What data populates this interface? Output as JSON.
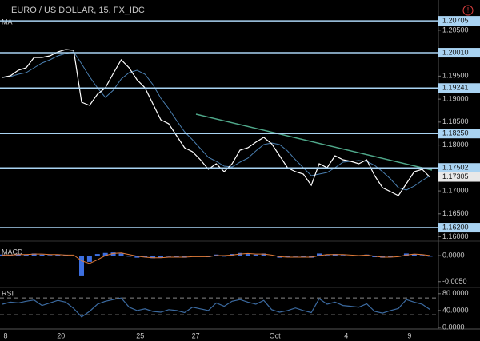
{
  "chart_data": [
    {
      "type": "line",
      "title": "EURO / US DOLLAR, 15, FX_IDC",
      "categories": [
        "8",
        null,
        null,
        null,
        null,
        null,
        null,
        "20",
        null,
        null,
        null,
        null,
        null,
        null,
        null,
        null,
        null,
        "25",
        null,
        null,
        null,
        null,
        null,
        null,
        "27",
        null,
        null,
        null,
        null,
        null,
        null,
        null,
        null,
        null,
        "Oct",
        null,
        null,
        null,
        null,
        null,
        null,
        null,
        null,
        "4",
        null,
        null,
        null,
        null,
        null,
        null,
        null,
        "9",
        null,
        null,
        null
      ],
      "series": [
        {
          "color": "#ffffff",
          "values": [
            1.19472,
            1.19506,
            1.19628,
            1.1968,
            1.19907,
            1.19907,
            1.19941,
            1.20028,
            1.20081,
            1.20063,
            1.18932,
            1.18863,
            1.19106,
            1.19245,
            1.19559,
            1.19854,
            1.1968,
            1.19419,
            1.19245,
            1.18898,
            1.1855,
            1.18463,
            1.18202,
            1.17941,
            1.17854,
            1.1768,
            1.17471,
            1.17593,
            1.17419,
            1.17593,
            1.17888,
            1.17941,
            1.18062,
            1.18167,
            1.18028,
            1.17767,
            1.17506,
            1.17419,
            1.17367,
            1.17123,
            1.17593,
            1.17506,
            1.17767,
            1.1768,
            1.17645,
            1.17593,
            1.1768,
            1.17332,
            1.17071,
            1.16984,
            1.16897,
            1.17158,
            1.17419,
            1.17471,
            1.17297
          ]
        },
        {
          "name": "MA",
          "color": "#4a7fb0",
          "values": [
            1.19472,
            1.19489,
            1.19541,
            1.19576,
            1.1968,
            1.19785,
            1.19854,
            1.19941,
            1.19994,
            1.20028,
            1.19767,
            1.19489,
            1.19245,
            1.19037,
            1.19193,
            1.19437,
            1.19576,
            1.19628,
            1.19541,
            1.19315,
            1.19019,
            1.18793,
            1.18532,
            1.18289,
            1.18115,
            1.17923,
            1.17732,
            1.17645,
            1.17541,
            1.17523,
            1.17628,
            1.17715,
            1.17871,
            1.1801,
            1.18045,
            1.1801,
            1.17871,
            1.1768,
            1.17506,
            1.17332,
            1.17367,
            1.17401,
            1.17506,
            1.17628,
            1.17645,
            1.17662,
            1.17645,
            1.17558,
            1.17419,
            1.17262,
            1.17071,
            1.17019,
            1.17106,
            1.17227,
            1.17332
          ]
        }
      ],
      "ylim": [
        1.1594,
        1.2102
      ],
      "yticks": [
        {
          "value": 1.205,
          "label": "1.20500"
        },
        {
          "value": 1.195,
          "label": "1.19500"
        },
        {
          "value": 1.19,
          "label": "1.19000"
        },
        {
          "value": 1.185,
          "label": "1.18500"
        },
        {
          "value": 1.18,
          "label": "1.18000"
        },
        {
          "value": 1.17,
          "label": "1.17000"
        },
        {
          "value": 1.165,
          "label": "1.16500"
        },
        {
          "value": 1.16,
          "label": "1.16000"
        }
      ],
      "levels": [
        1.20705,
        {
          "value": 1.2001,
          "label": "1.20010"
        },
        1.19241,
        {
          "value": 1.1825,
          "label": "1.18250"
        },
        1.17502,
        {
          "value": 1.162,
          "label": "1.16200"
        }
      ],
      "level_color": "#a9d3f2",
      "last_price": 1.17305
    },
    {
      "type": "macd",
      "title": "MACD",
      "color": "#3d6fe0",
      "values": [
        0.0002,
        0.0001,
        0.0003,
        0.0002,
        0.0004,
        0.0002,
        0.0001,
        0.0002,
        0.0001,
        -0.0001,
        -0.0038,
        -0.0012,
        0.0003,
        0.0005,
        0.0006,
        0.0004,
        -0.0002,
        -0.0004,
        -0.0003,
        -0.0005,
        -0.0004,
        -0.0002,
        -0.0003,
        -0.0004,
        -0.0001,
        -0.0002,
        -0.0003,
        0.0002,
        -0.0002,
        0.0003,
        0.0005,
        0.0003,
        0.0002,
        0.0004,
        -0.0001,
        -0.0004,
        -0.0003,
        -0.0002,
        -0.0003,
        -0.0004,
        0.0004,
        0.0001,
        0.0003,
        0.0001,
        0,
        -0.0001,
        0.0002,
        -0.0003,
        -0.0004,
        -0.0003,
        -0.0002,
        0.0004,
        0.0003,
        0.0001,
        -0.0002
      ],
      "signal": [
        0.0001,
        0.0001,
        0.0002,
        0.0002,
        0.0003,
        0.0003,
        0.0002,
        0.0002,
        0.0001,
        0.0001,
        -0.001,
        -0.0015,
        -0.0008,
        0,
        0.0004,
        0.0005,
        0.0002,
        -0.0001,
        -0.0003,
        -0.0004,
        -0.0004,
        -0.0003,
        -0.0003,
        -0.0003,
        -0.0002,
        -0.0002,
        -0.0002,
        0,
        0,
        0.0001,
        0.0003,
        0.0004,
        0.0003,
        0.0003,
        0.0001,
        -0.0002,
        -0.0003,
        -0.0003,
        -0.0003,
        -0.0003,
        0,
        0.0002,
        0.0002,
        0.0002,
        0.0001,
        0,
        0.0001,
        -0.0001,
        -0.0003,
        -0.0003,
        -0.0002,
        0.0001,
        0.0003,
        0.0002,
        0
      ],
      "signal_color": "#e07b39",
      "ylim": [
        -0.0058,
        0.0023
      ],
      "yticks": [
        {
          "value": 0,
          "label": "0.0000"
        },
        {
          "value": -0.005,
          "label": "-0.0050"
        }
      ]
    },
    {
      "type": "line",
      "title": "RSI",
      "color": "#3b6aa0",
      "values": [
        55,
        60,
        58,
        62,
        65,
        52,
        58,
        64,
        60,
        45,
        25,
        38,
        55,
        62,
        66,
        70,
        48,
        40,
        44,
        38,
        36,
        42,
        40,
        35,
        48,
        44,
        40,
        58,
        50,
        62,
        66,
        60,
        55,
        64,
        42,
        36,
        40,
        46,
        40,
        35,
        68,
        55,
        60,
        52,
        50,
        48,
        56,
        38,
        34,
        40,
        45,
        66,
        60,
        55,
        42
      ],
      "ylim": [
        0,
        91
      ],
      "yticks": [
        {
          "value": 80,
          "label": "80.0000"
        },
        {
          "value": 40,
          "label": "40.0000"
        },
        {
          "value": 0,
          "label": "0.0000"
        }
      ],
      "bands": [
        70,
        30
      ]
    }
  ]
}
